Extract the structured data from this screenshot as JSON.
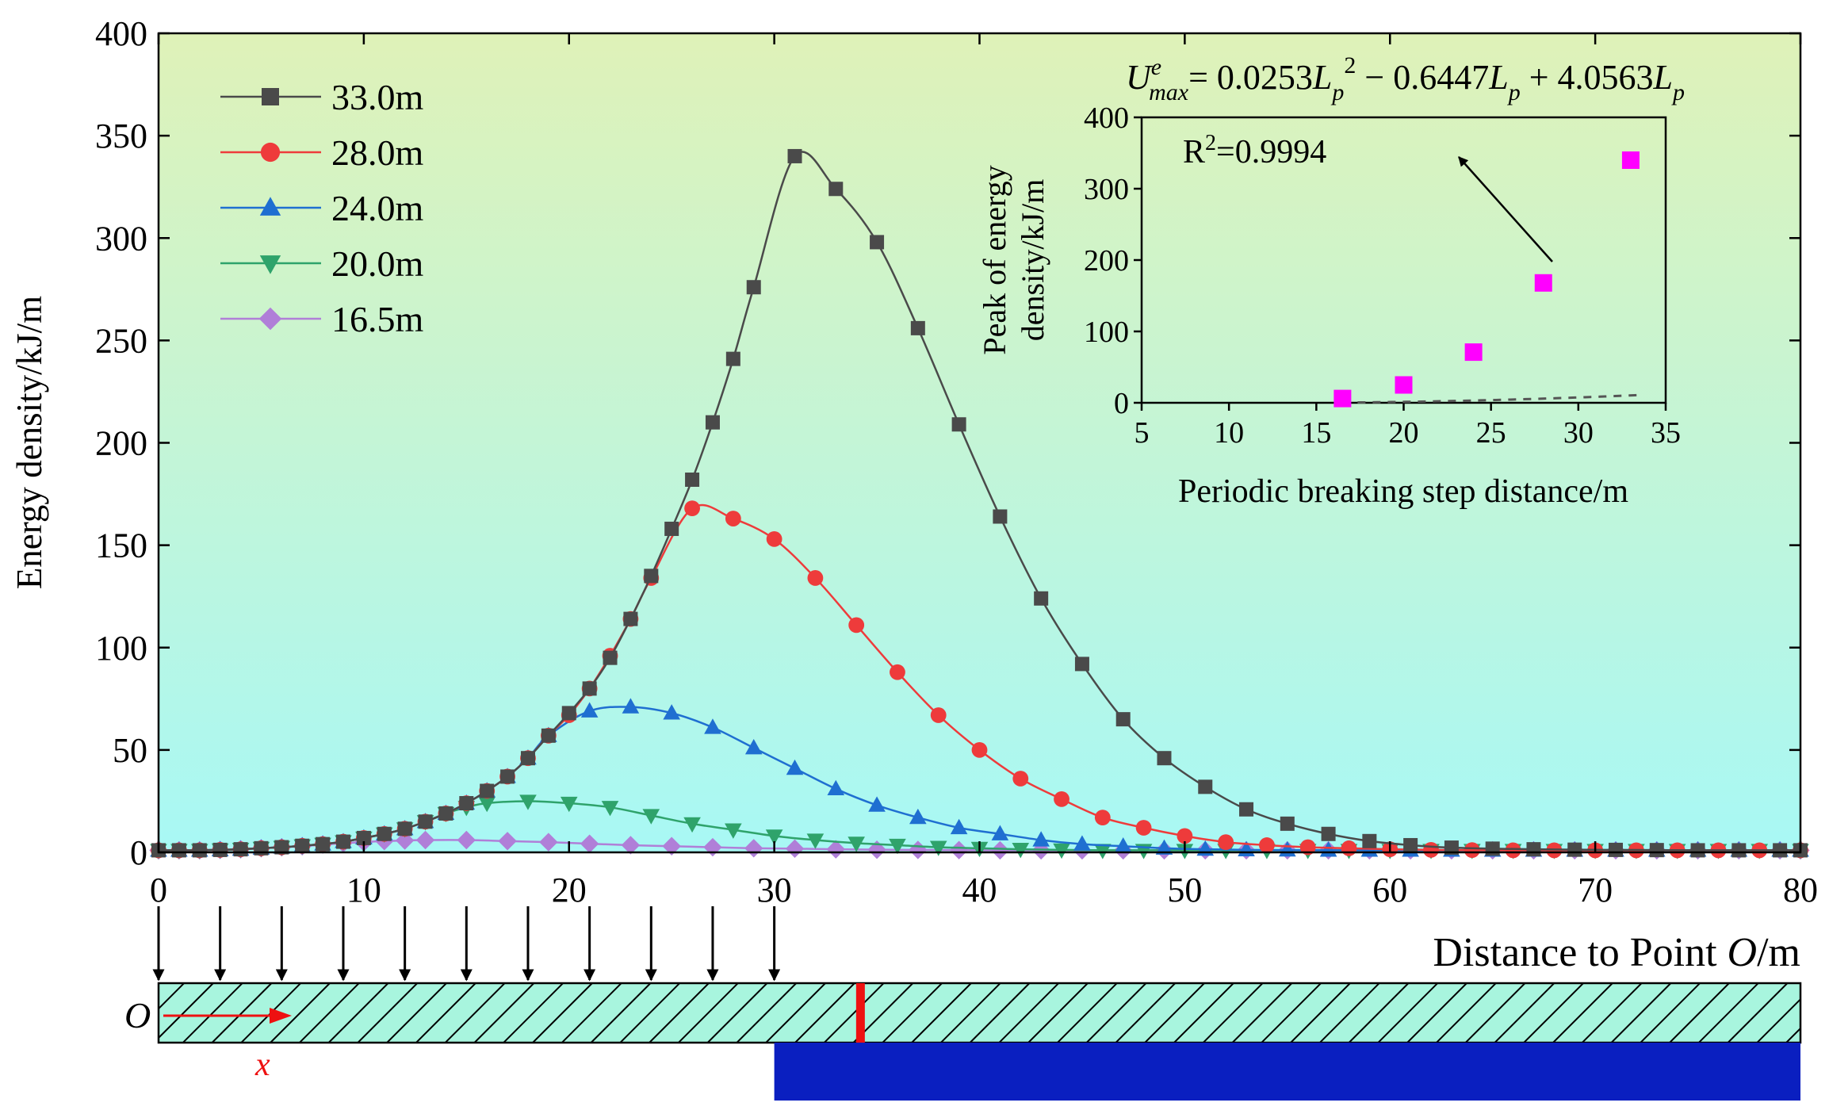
{
  "chart_data": {
    "type": "line",
    "xlabel": "Distance to Point O/m",
    "ylabel": "Energy density/kJ/m",
    "xlim": [
      0,
      80
    ],
    "ylim": [
      0,
      400
    ],
    "xticks": [
      0,
      10,
      20,
      30,
      40,
      50,
      60,
      70,
      80
    ],
    "yticks": [
      0,
      50,
      100,
      150,
      200,
      250,
      300,
      350,
      400
    ],
    "legend_position": "top-left",
    "series": [
      {
        "name": "33.0m",
        "color": "#4a4a4a",
        "marker": "square",
        "x": [
          0,
          1,
          2,
          3,
          4,
          5,
          6,
          7,
          8,
          9,
          10,
          11,
          12,
          13,
          14,
          15,
          16,
          17,
          18,
          19,
          20,
          21,
          22,
          23,
          24,
          25,
          26,
          27,
          28,
          29,
          31,
          33,
          35,
          37,
          39,
          41,
          43,
          45,
          47,
          49,
          51,
          53,
          55,
          57,
          59,
          61,
          63,
          65,
          67,
          69,
          71,
          73,
          75,
          77,
          79,
          80
        ],
        "y": [
          1,
          1,
          1,
          1.2,
          1.5,
          2,
          2.5,
          3.2,
          4,
          5.2,
          7,
          9,
          11.5,
          15,
          19,
          24,
          30,
          37,
          46,
          57,
          68,
          80,
          95,
          114,
          135,
          158,
          182,
          210,
          241,
          276,
          340,
          324,
          298,
          256,
          209,
          164,
          124,
          92,
          65,
          46,
          32,
          21,
          14,
          9,
          5.5,
          3.5,
          2.3,
          1.8,
          1.5,
          1.3,
          1.2,
          1.1,
          1,
          1,
          1,
          1
        ]
      },
      {
        "name": "28.0m",
        "color": "#ee3b3b",
        "marker": "circle",
        "x": [
          0,
          1,
          2,
          3,
          4,
          5,
          6,
          7,
          8,
          9,
          10,
          11,
          12,
          13,
          14,
          15,
          16,
          17,
          18,
          19,
          20,
          21,
          22,
          23,
          24,
          26,
          28,
          30,
          32,
          34,
          36,
          38,
          40,
          42,
          44,
          46,
          48,
          50,
          52,
          54,
          56,
          58,
          60,
          62,
          64,
          66,
          68,
          70,
          72,
          74,
          76,
          78,
          80
        ],
        "y": [
          1,
          1,
          1,
          1.2,
          1.5,
          2,
          2.5,
          3.2,
          4,
          5.2,
          7,
          9,
          11.5,
          15,
          19,
          24,
          30,
          37,
          46,
          57,
          67,
          80,
          96,
          114,
          134,
          168,
          163,
          153,
          134,
          111,
          88,
          67,
          50,
          36,
          26,
          17,
          12,
          8,
          5,
          3.5,
          2.5,
          2,
          1.5,
          1.2,
          1.1,
          1,
          1,
          1,
          1,
          1,
          1,
          1,
          1
        ]
      },
      {
        "name": "24.0m",
        "color": "#1f6fd1",
        "marker": "triangle-up",
        "x": [
          0,
          1,
          2,
          3,
          4,
          5,
          6,
          7,
          8,
          9,
          10,
          11,
          12,
          13,
          14,
          15,
          16,
          17,
          18,
          19,
          21,
          23,
          25,
          27,
          29,
          31,
          33,
          35,
          37,
          39,
          41,
          43,
          45,
          47,
          49,
          51,
          53,
          55,
          57,
          59,
          61,
          63,
          65,
          67,
          69,
          71,
          73,
          75,
          77,
          79,
          80
        ],
        "y": [
          1,
          1,
          1,
          1.2,
          1.5,
          2,
          2.5,
          3.2,
          4,
          5.2,
          7,
          9,
          11.5,
          15,
          19,
          24,
          30,
          37,
          46,
          57,
          69,
          71,
          68,
          61,
          51,
          41,
          31,
          23,
          17,
          12,
          9,
          6,
          4,
          3,
          2,
          1.5,
          1.2,
          1.1,
          1,
          1,
          1,
          1,
          1,
          1,
          1,
          1,
          1,
          1,
          1,
          1,
          1
        ]
      },
      {
        "name": "20.0m",
        "color": "#2fa36b",
        "marker": "triangle-down",
        "x": [
          0,
          1,
          2,
          3,
          4,
          5,
          6,
          7,
          8,
          9,
          10,
          11,
          12,
          13,
          14,
          15,
          16,
          18,
          20,
          22,
          24,
          26,
          28,
          30,
          32,
          34,
          36,
          38,
          40,
          42,
          44,
          46,
          48,
          50,
          52,
          54,
          56,
          58,
          60,
          62,
          64,
          66,
          68,
          70,
          72,
          74,
          76,
          78,
          80
        ],
        "y": [
          1,
          1,
          1,
          1.2,
          1.5,
          2,
          2.5,
          3.2,
          4,
          5.2,
          7,
          9,
          11.5,
          15,
          19,
          22,
          24,
          25,
          24,
          22,
          18,
          14,
          11,
          8,
          6,
          4.5,
          3.5,
          2.5,
          2,
          1.5,
          1.2,
          1,
          1,
          1,
          1,
          1,
          1,
          1,
          1,
          1,
          1,
          1,
          1,
          1,
          1,
          1,
          1,
          1,
          1
        ]
      },
      {
        "name": "16.5m",
        "color": "#b07fd8",
        "marker": "diamond",
        "x": [
          0,
          1,
          2,
          3,
          4,
          5,
          6,
          7,
          8,
          9,
          10,
          11,
          12,
          13,
          15,
          17,
          19,
          21,
          23,
          25,
          27,
          29,
          31,
          33,
          35,
          37,
          39,
          41,
          43,
          45,
          47,
          49,
          51,
          53,
          55,
          57,
          59,
          61,
          63,
          65,
          67,
          69,
          71,
          73,
          75,
          77,
          79,
          80
        ],
        "y": [
          1,
          1,
          1,
          1.2,
          1.5,
          2,
          2.5,
          3,
          3.8,
          4.5,
          5,
          5.5,
          5.8,
          6,
          6,
          5.5,
          5,
          4.2,
          3.5,
          3,
          2.5,
          2,
          1.8,
          1.5,
          1.3,
          1.2,
          1.1,
          1,
          1,
          1,
          1,
          1,
          1,
          1,
          1,
          1,
          1,
          1,
          1,
          1,
          1,
          1,
          1,
          1,
          1,
          1,
          1,
          1
        ]
      }
    ],
    "inset": {
      "type": "scatter",
      "xlabel": "Periodic breaking step distance/m",
      "ylabel_line1": "Peak of energy",
      "ylabel_line2": "density/kJ/m",
      "xlim": [
        5,
        35
      ],
      "ylim": [
        0,
        400
      ],
      "xticks": [
        5,
        10,
        15,
        20,
        25,
        30,
        35
      ],
      "yticks": [
        0,
        100,
        200,
        300,
        400
      ],
      "marker_color": "#ff00ff",
      "points": [
        {
          "x": 16.5,
          "y": 6
        },
        {
          "x": 20.0,
          "y": 25
        },
        {
          "x": 24.0,
          "y": 71
        },
        {
          "x": 28.0,
          "y": 168
        },
        {
          "x": 33.0,
          "y": 340
        }
      ],
      "fit": {
        "a": 0.0253,
        "b": -0.6447,
        "c": 4.0563
      },
      "equation_parts": [
        "U",
        "e",
        "max",
        "= 0.0253",
        "L",
        "p",
        "2",
        " − 0.6447",
        "L",
        "p",
        " + 4.0563",
        "L",
        "p"
      ],
      "r2_label": "R",
      "r2_sup": "2",
      "r2_value": "=0.9994"
    },
    "diagram": {
      "origin_label": "O",
      "x_label": "x",
      "load_arrow_positions": [
        0,
        3,
        6,
        9,
        12,
        15,
        18,
        21,
        24,
        27,
        30
      ],
      "support_start": 30,
      "support_end": 80,
      "break_position": 34.2,
      "hatch_color": "#a8f5de",
      "support_color": "#0a1fc0",
      "break_color": "#ee1111",
      "axis_arrow_color": "#ee1111"
    },
    "colors": {
      "bg_top": "#dff2b8",
      "bg_bottom": "#a8f8f5"
    }
  }
}
